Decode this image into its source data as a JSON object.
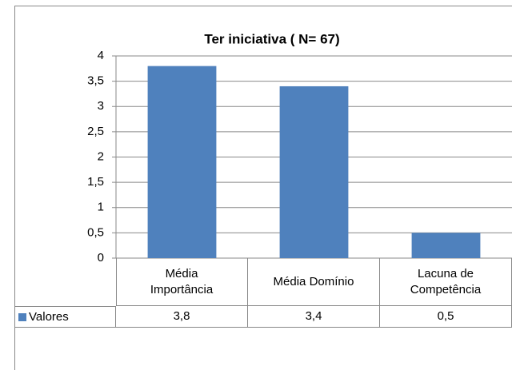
{
  "chart_data": {
    "type": "bar",
    "title": "Ter iniciativa ( N= 67)",
    "categories": [
      "Média Importância",
      "Média Domínio",
      "Lacuna de Competência"
    ],
    "series": [
      {
        "name": "Valores",
        "color": "#4f81bd",
        "values": [
          3.8,
          3.4,
          0.5
        ],
        "value_labels": [
          "3,8",
          "3,4",
          "0,5"
        ]
      }
    ],
    "ylim": [
      0,
      4
    ],
    "yticks": [
      0,
      {
        "value": 0.5,
        "label": "0,5"
      },
      1,
      {
        "value": 1.5,
        "label": "1,5"
      },
      2,
      {
        "value": 2.5,
        "label": "2,5"
      },
      3,
      {
        "value": 3.5,
        "label": "3,5"
      },
      4
    ],
    "grid": true
  }
}
